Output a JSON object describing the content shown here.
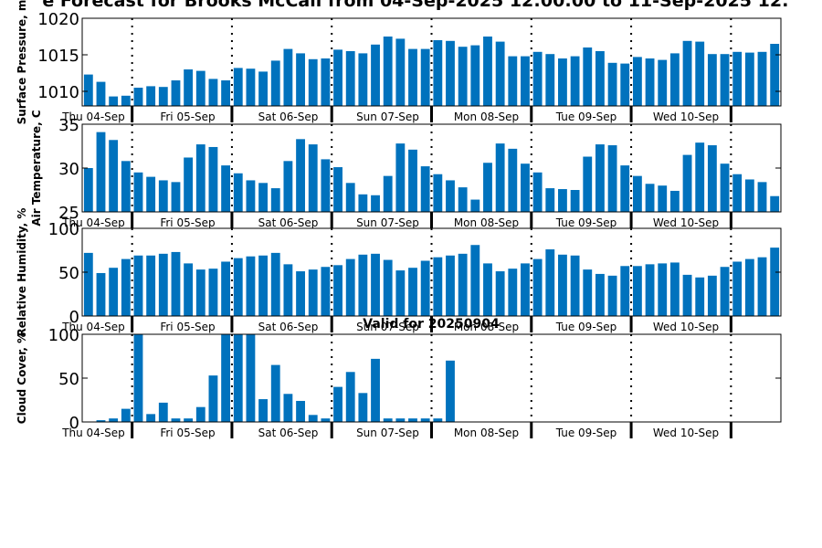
{
  "title": "e Forecast for Brooks McCall from 04-Sep-2025 12:00:00 to 11-Sep-2025 12:",
  "chart_data": [
    {
      "type": "bar",
      "ylabel": "Surface Pressure, m",
      "ylim": [
        1008,
        1020
      ],
      "yticks": [
        1010,
        1015,
        1020
      ],
      "ytick_labels": [
        "1010",
        "1015",
        "1020"
      ],
      "day_labels": [
        "Thu 04-Sep",
        "Fri 05-Sep",
        "Sat 06-Sep",
        "Sun 07-Sep",
        "Mon 08-Sep",
        "Tue 09-Sep",
        "Wed 10-Sep"
      ],
      "color": "#0072BD",
      "values": [
        1012.3,
        1011.3,
        1009.3,
        1009.4,
        1010.5,
        1010.7,
        1010.6,
        1011.5,
        1013.0,
        1012.8,
        1011.7,
        1011.5,
        1013.2,
        1013.1,
        1012.7,
        1014.2,
        1015.8,
        1015.2,
        1014.4,
        1014.5,
        1015.7,
        1015.5,
        1015.2,
        1016.4,
        1017.5,
        1017.2,
        1015.8,
        1015.8,
        1017.0,
        1016.9,
        1016.1,
        1016.3,
        1017.5,
        1016.8,
        1014.8,
        1014.8,
        1015.4,
        1015.1,
        1014.5,
        1014.8,
        1016.0,
        1015.5,
        1013.9,
        1013.8,
        1014.7,
        1014.5,
        1014.3,
        1015.2,
        1016.9,
        1016.8,
        1015.1,
        1015.1,
        1015.4,
        1015.3,
        1015.4,
        1016.5
      ],
      "subtitle": ""
    },
    {
      "type": "bar",
      "ylabel": "Air Temperature, C",
      "ylim": [
        25,
        35
      ],
      "yticks": [
        25,
        30,
        35
      ],
      "ytick_labels": [
        "25",
        "30",
        "35"
      ],
      "day_labels": [
        "Thu 04-Sep",
        "Fri 05-Sep",
        "Sat 06-Sep",
        "Sun 07-Sep",
        "Mon 08-Sep",
        "Tue 09-Sep",
        "Wed 10-Sep"
      ],
      "color": "#0072BD",
      "values": [
        30.0,
        34.1,
        33.2,
        30.8,
        29.5,
        29.0,
        28.6,
        28.4,
        31.2,
        32.7,
        32.4,
        30.3,
        29.4,
        28.6,
        28.3,
        27.7,
        30.8,
        33.3,
        32.7,
        31.0,
        30.1,
        28.3,
        27.0,
        26.9,
        29.1,
        32.8,
        32.1,
        30.2,
        29.3,
        28.6,
        27.8,
        26.4,
        30.6,
        32.8,
        32.2,
        30.5,
        29.5,
        27.7,
        27.6,
        27.5,
        31.3,
        32.7,
        32.6,
        30.3,
        29.1,
        28.2,
        28.0,
        27.4,
        31.5,
        32.9,
        32.6,
        30.5,
        29.3,
        28.7,
        28.4,
        26.8
      ],
      "subtitle": ""
    },
    {
      "type": "bar",
      "ylabel": "Relative Humidity, %",
      "ylim": [
        0,
        100
      ],
      "yticks": [
        0,
        50,
        100
      ],
      "ytick_labels": [
        "0",
        "50",
        "100"
      ],
      "day_labels": [
        "Thu 04-Sep",
        "Fri 05-Sep",
        "Sat 06-Sep",
        "Sun 07-Sep",
        "Mon 08-Sep",
        "Tue 09-Sep",
        "Wed 10-Sep"
      ],
      "color": "#0072BD",
      "values": [
        72,
        49,
        55,
        65,
        69,
        69,
        71,
        73,
        60,
        53,
        54,
        62,
        66,
        68,
        69,
        72,
        59,
        51,
        53,
        56,
        58,
        65,
        70,
        71,
        64,
        52,
        55,
        63,
        67,
        69,
        71,
        81,
        60,
        51,
        54,
        60,
        65,
        76,
        70,
        69,
        53,
        48,
        46,
        57,
        57,
        59,
        60,
        61,
        47,
        44,
        46,
        56,
        62,
        65,
        67,
        78
      ],
      "subtitle": ""
    },
    {
      "type": "bar",
      "ylabel": "Cloud Cover, %",
      "ylim": [
        0,
        100
      ],
      "yticks": [
        0,
        50,
        100
      ],
      "ytick_labels": [
        "0",
        "50",
        "100"
      ],
      "day_labels": [
        "Thu 04-Sep",
        "Fri 05-Sep",
        "Sat 06-Sep",
        "Sun 07-Sep",
        "Mon 08-Sep",
        "Tue 09-Sep",
        "Wed 10-Sep"
      ],
      "color": "#0072BD",
      "values": [
        0,
        2,
        4,
        15,
        100,
        9,
        22,
        4,
        4,
        17,
        53,
        100,
        100,
        100,
        26,
        65,
        32,
        24,
        8,
        4,
        40,
        57,
        33,
        72,
        4,
        4,
        4,
        4,
        4,
        70,
        0,
        0,
        0,
        0,
        0,
        0,
        0,
        0,
        0,
        0,
        0,
        0,
        0,
        0,
        0,
        0,
        0,
        0,
        0,
        0,
        0,
        0,
        0,
        0,
        0,
        0
      ],
      "subtitle": "Valid for 20250904"
    }
  ]
}
